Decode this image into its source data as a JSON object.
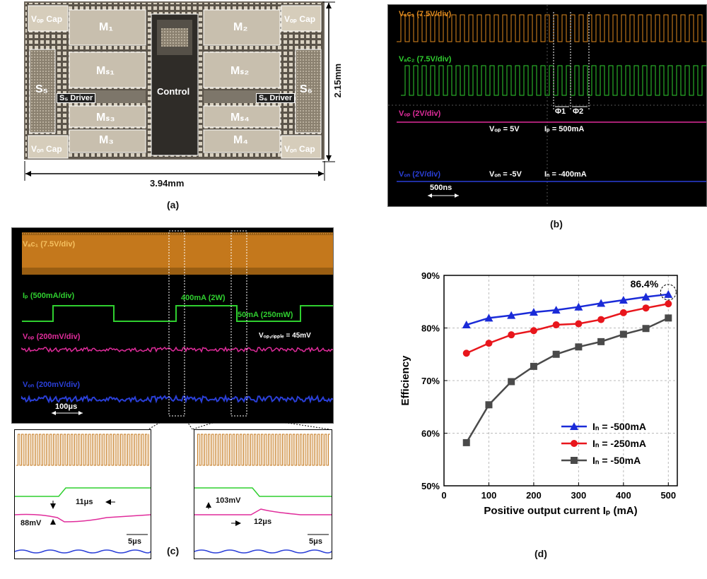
{
  "panel_a": {
    "label": "(a)",
    "blocks": {
      "vop_cap_left": "Vₒₚ Cap",
      "vop_cap_right": "Vₒₚ Cap",
      "von_cap_left": "Vₒₙ Cap",
      "von_cap_right": "Vₒₙ Cap",
      "m1": "M₁",
      "m2": "M₂",
      "ms1": "Mₛ₁",
      "ms2": "Mₛ₂",
      "ms3": "Mₛ₃",
      "ms4": "Mₛ₄",
      "m3": "M₃",
      "m4": "M₄",
      "s5": "S₅",
      "s6": "S₆",
      "s5_driver": "S₅ Driver",
      "s6_driver": "S₆ Driver",
      "control": "Control"
    },
    "width_dim": "3.94mm",
    "height_dim": "2.15mm"
  },
  "panel_b": {
    "label": "(b)",
    "vac1": "Vₐᴄ₁ (7.5V/div)",
    "vac2": "Vₐᴄ₂ (7.5V/div)",
    "vop": "Vₒₚ (2V/div)",
    "von": "Vₒₙ (2V/div)",
    "vop_val": "Vₒₚ = 5V",
    "ip_val": "Iₚ = 500mA",
    "von_val": "Vₒₙ = -5V",
    "in_val": "Iₙ = -400mA",
    "phi1": "Φ1",
    "phi2": "Φ2",
    "time_scale": "500ns"
  },
  "panel_c": {
    "label": "(c)",
    "vac1": "Vₐᴄ₁ (7.5V/div)",
    "ip": "Iₚ (500mA/div)",
    "vop": "Vₒₚ (200mV/div)",
    "von": "Vₒₙ (200mV/div)",
    "step_high": "400mA (2W)",
    "step_low": "50mA (250mW)",
    "ripple": "Vₒₚ,ᵣᵢₚₚₗₑ = 45mV",
    "time_scale": "100μs",
    "zoom_left": {
      "settle": "11μs",
      "drop": "88mV",
      "scale": "5μs"
    },
    "zoom_right": {
      "settle": "12μs",
      "rise": "103mV",
      "scale": "5μs"
    }
  },
  "panel_d": {
    "label": "(d)"
  },
  "chart_data": {
    "type": "line",
    "xlabel": "Positive output current Iₚ (mA)",
    "ylabel": "Efficiency",
    "xlim": [
      0,
      520
    ],
    "ylim": [
      50,
      90
    ],
    "xticks": [
      "0",
      "100",
      "200",
      "300",
      "400",
      "500"
    ],
    "yticks": [
      "50%",
      "60%",
      "70%",
      "80%",
      "90%"
    ],
    "grid": true,
    "legend_position": "bottom-right",
    "annotation": "86.4%",
    "x": [
      50,
      100,
      150,
      200,
      250,
      300,
      350,
      400,
      450,
      500
    ],
    "series": [
      {
        "name": "Iₙ = -500mA",
        "color": "#1a2bd8",
        "marker": "triangle",
        "values": [
          80.6,
          81.9,
          82.4,
          83.0,
          83.4,
          84.0,
          84.7,
          85.3,
          85.9,
          86.4
        ]
      },
      {
        "name": "Iₙ = -250mA",
        "color": "#e8161c",
        "marker": "circle",
        "values": [
          75.2,
          77.1,
          78.7,
          79.5,
          80.6,
          80.8,
          81.6,
          82.9,
          83.8,
          84.6
        ]
      },
      {
        "name": "Iₙ = -50mA",
        "color": "#4a4a4a",
        "marker": "square",
        "values": [
          58.2,
          65.4,
          69.8,
          72.7,
          75.0,
          76.4,
          77.4,
          78.8,
          79.9,
          81.9
        ]
      }
    ]
  }
}
